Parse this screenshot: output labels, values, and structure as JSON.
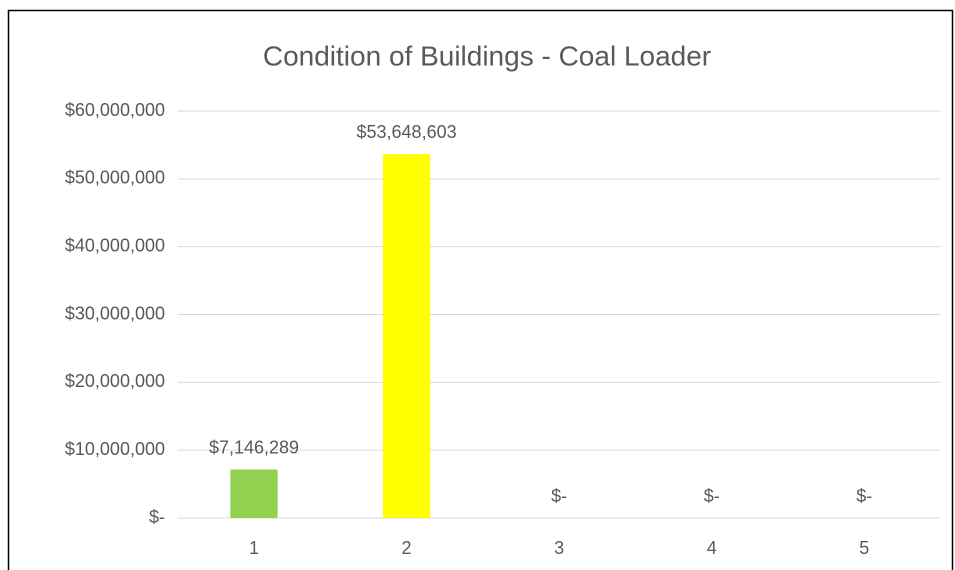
{
  "chart_data": {
    "type": "bar",
    "title": "Condition of Buildings - Coal Loader",
    "categories": [
      "1",
      "2",
      "3",
      "4",
      "5"
    ],
    "values": [
      7146289,
      53648603,
      0,
      0,
      0
    ],
    "value_labels": [
      "$7,146,289",
      "$53,648,603",
      "$-",
      "$-",
      "$-"
    ],
    "colors": [
      "#92d050",
      "#ffff00",
      null,
      null,
      null
    ],
    "ylim": [
      0,
      60000000
    ],
    "yticks": [
      {
        "value": 0,
        "label": "$-"
      },
      {
        "value": 10000000,
        "label": "$10,000,000"
      },
      {
        "value": 20000000,
        "label": "$20,000,000"
      },
      {
        "value": 30000000,
        "label": "$30,000,000"
      },
      {
        "value": 40000000,
        "label": "$40,000,000"
      },
      {
        "value": 50000000,
        "label": "$50,000,000"
      },
      {
        "value": 60000000,
        "label": "$60,000,000"
      }
    ],
    "grid": true
  }
}
